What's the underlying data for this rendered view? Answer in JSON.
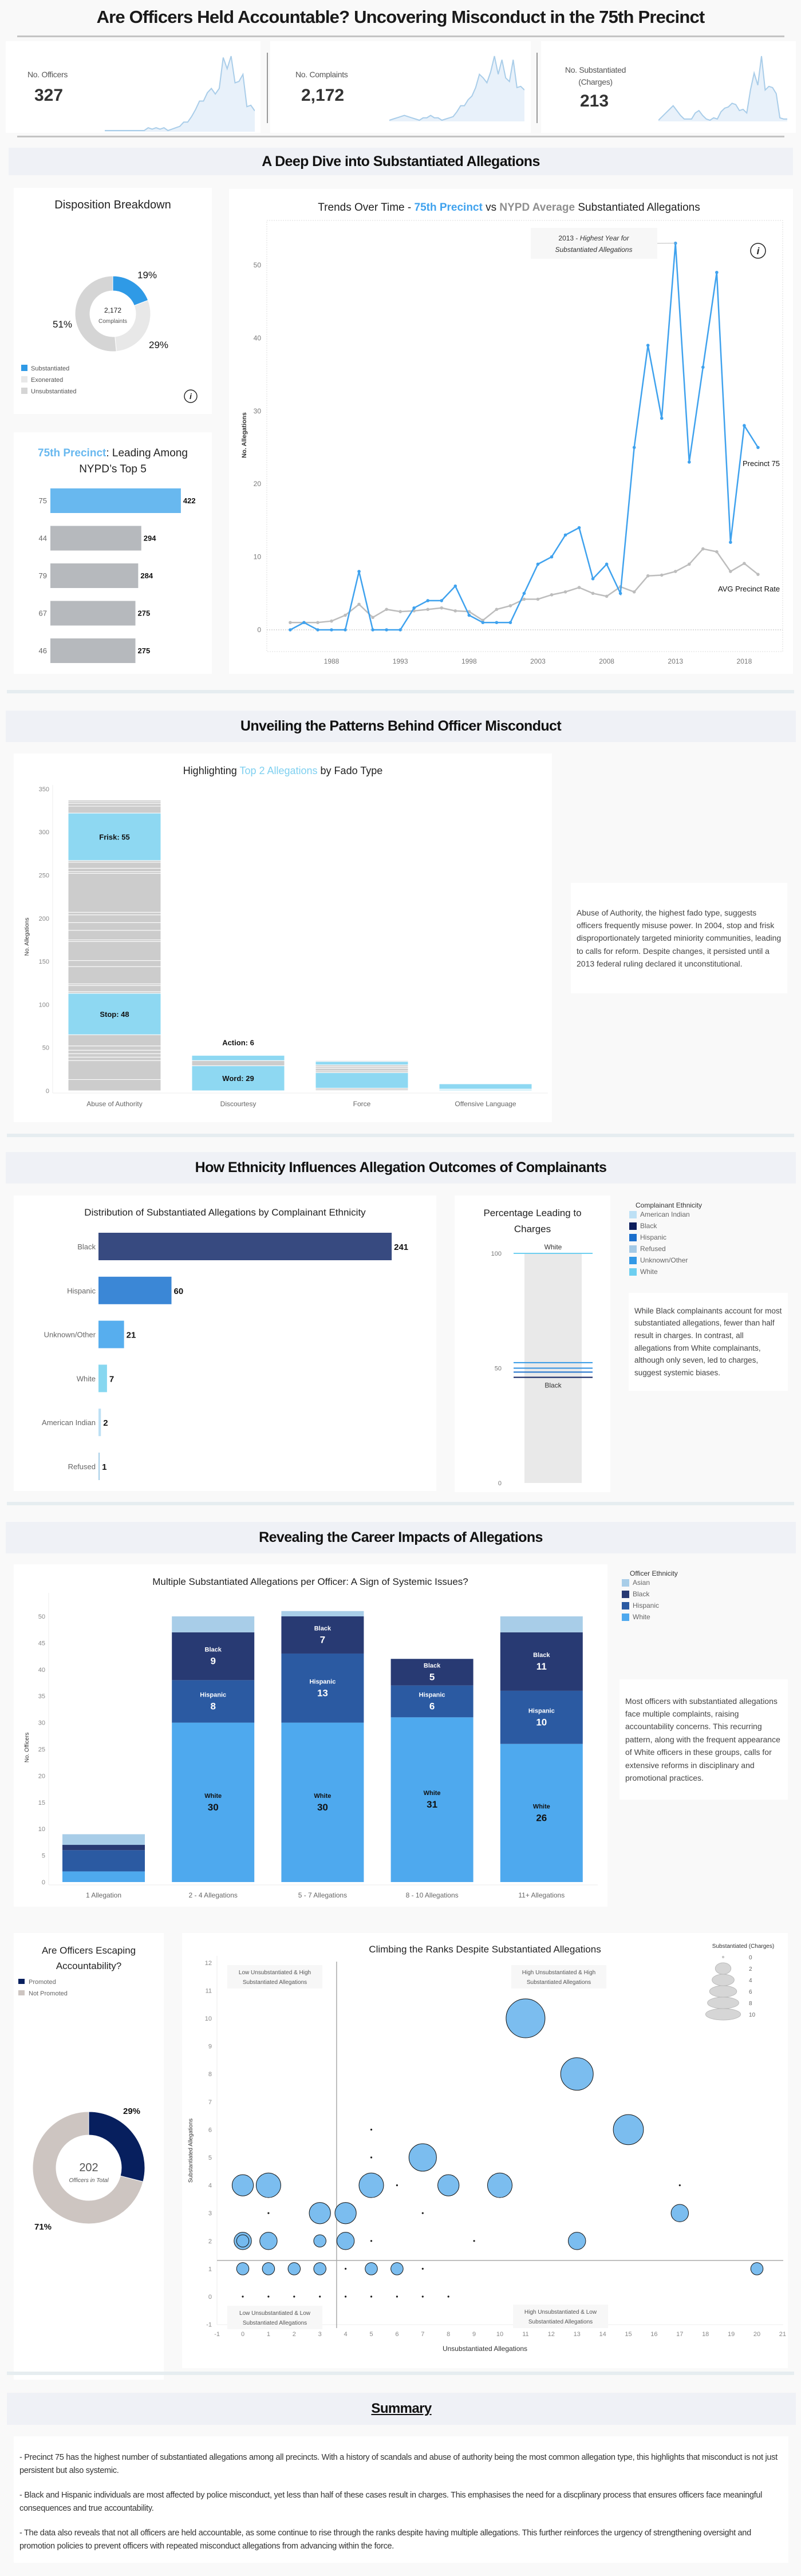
{
  "header": {
    "title": "Are Officers Held Accountable? Uncovering Misconduct in the 75th Precinct"
  },
  "kpis": [
    {
      "label": "No. Officers",
      "value": "327",
      "trend": [
        0,
        0,
        0,
        0,
        0,
        0,
        0,
        0,
        0,
        0,
        0,
        2,
        1,
        2,
        1,
        2,
        0,
        1,
        2,
        3,
        6,
        6,
        10,
        15,
        21,
        21,
        27,
        30,
        26,
        30,
        52,
        44,
        53,
        34,
        35,
        40,
        17,
        18,
        14
      ]
    },
    {
      "label": "No. Complaints",
      "value": "2,172",
      "trend": [
        0,
        1,
        2,
        3,
        4,
        3,
        2,
        1,
        0,
        2,
        2,
        4,
        2,
        2,
        0,
        1,
        2,
        3,
        7,
        12,
        12,
        17,
        20,
        27,
        38,
        35,
        31,
        40,
        53,
        38,
        50,
        35,
        32,
        50,
        27,
        28,
        25
      ]
    },
    {
      "label_line1": "No. Substantiated",
      "label_line2": "(Charges)",
      "value": "213",
      "trend": [
        0,
        3,
        6,
        9,
        12,
        8,
        4,
        1,
        1,
        1,
        6,
        8,
        4,
        1,
        0,
        2,
        1,
        7,
        10,
        11,
        14,
        13,
        8,
        9,
        6,
        25,
        39,
        29,
        53,
        25,
        28,
        27,
        22,
        2,
        1,
        1
      ]
    }
  ],
  "sections": {
    "deep_dive": "A Deep Dive into Substantiated Allegations",
    "patterns": "Unveiling the Patterns Behind Officer Misconduct",
    "ethnicity": "How Ethnicity Influences Allegation Outcomes of Complainants",
    "career": "Revealing the Career Impacts of Allegations",
    "summary": "Summary"
  },
  "notes": {
    "fado": "Abuse of Authority, the highest fado type, suggests officers frequently misuse power. In 2004, stop and frisk disproportionately targeted miniority communities, leading to calls for reform. Despite changes, it persisted until a 2013 federal ruling declared it unconstitutional.",
    "ethnicity": "While Black complainants account for most substantiated allegations, fewer than half result in charges. In contrast, all allegations from White complainants, although only seven, led to charges, suggest systemic biases.",
    "career": "Most officers with substantiated allegations face multiple complaints, raising accountability concerns. This recurring pattern, along with the frequent appearance of White officers in these groups, calls for extensive reforms in disciplinary and promotional practices."
  },
  "summary": [
    "- Precinct 75 has the highest number of substantiated allegations among all precincts. With a history of scandals and abuse of authority being the most common allegation type, this highlights that misconduct is not just persistent but also systemic.",
    "- Black and Hispanic individuals are most affected by police misconduct, yet less than half of these cases result in charges. This emphasises the need for a discplinary process that ensures officers face meaningful consequences and true accountability.",
    "- The data also reveals that not all officers are held accountable, as some continue to rise through the ranks despite having multiple allegations. This further reinforces the urgency of strengthening oversight and promotion policies to prevent officers with repeated misconduct allegations from advancing within the force."
  ],
  "icons": {
    "info": "info-circle-icon"
  },
  "chart_data": [
    {
      "type": "pie",
      "title": "Disposition Breakdown",
      "center_value": "2,172",
      "center_label": "Complaints",
      "slices": [
        {
          "label": "Substantiated",
          "value": 19,
          "display": "19%",
          "color": "#2f9ae6"
        },
        {
          "label": "Exonerated",
          "value": 29,
          "display": "29%",
          "color": "#e8e8e8"
        },
        {
          "label": "Unsubstantiated",
          "value": 51,
          "display": "51%",
          "color": "#d5d5d5"
        }
      ],
      "legend_placement": "bottom-left"
    },
    {
      "type": "bar",
      "orientation": "horizontal",
      "title_highlight": "75th Precinct",
      "title_rest": ": Leading Among",
      "title_line2": "NYPD’s  Top 5",
      "categories": [
        "75",
        "44",
        "79",
        "67",
        "46"
      ],
      "values": [
        422,
        294,
        284,
        275,
        275
      ],
      "highlight_color": "#68b8ef",
      "base_color": "#b6b9bd"
    },
    {
      "type": "line",
      "title_parts": [
        "Trends Over Time - ",
        "75th Precinct",
        " vs ",
        "NYPD Average",
        " Substantiated Allegations"
      ],
      "ylabel": "No. Allegations",
      "xlabel": "",
      "ylim": [
        -3,
        56
      ],
      "xlim": [
        1983.3,
        2020.8
      ],
      "yticks": [
        0,
        10,
        20,
        30,
        40,
        50
      ],
      "xticks": [
        1988,
        1993,
        1998,
        2003,
        2008,
        2013,
        2018
      ],
      "grid": false,
      "x": [
        1985,
        1986,
        1987,
        1988,
        1989,
        1990,
        1991,
        1992,
        1993,
        1994,
        1995,
        1996,
        1997,
        1998,
        1999,
        2000,
        2001,
        2002,
        2003,
        2004,
        2005,
        2006,
        2007,
        2008,
        2009,
        2010,
        2011,
        2012,
        2013,
        2014,
        2015,
        2016,
        2017,
        2018,
        2019
      ],
      "series": [
        {
          "name": "Precinct 75",
          "color": "#3fa2ee",
          "values": [
            0,
            1,
            0,
            0,
            0,
            8,
            0,
            0,
            0,
            3,
            4,
            4,
            6,
            2,
            1,
            1,
            1,
            5,
            9,
            10,
            13,
            14,
            7,
            9,
            5,
            25,
            39,
            29,
            53,
            23,
            36,
            49,
            12,
            28,
            25
          ]
        },
        {
          "name": "AVG Precinct Rate",
          "color": "#bdbdbd",
          "values": [
            1,
            1,
            1,
            1.2,
            2,
            3.5,
            1.7,
            2.8,
            2.5,
            2.6,
            2.8,
            3.0,
            2.6,
            2.5,
            1.3,
            2.8,
            3.3,
            4.2,
            4.2,
            4.8,
            5.2,
            5.8,
            5.0,
            4.6,
            5.9,
            5.2,
            7.4,
            7.5,
            8.0,
            9.0,
            11.1,
            10.7,
            8.0,
            9.1,
            7.6
          ]
        }
      ],
      "annotation": {
        "year": "2013 - ",
        "text": "Highest Year for",
        "text2": "Substantiated Allegations",
        "x": 2013,
        "y": 53
      }
    },
    {
      "type": "bar",
      "stacked": true,
      "title_parts": [
        "Highlighting ",
        "Top 2 Allegations",
        " by Fado Type"
      ],
      "ylabel": "No. Allegations",
      "ylim": [
        0,
        350
      ],
      "yticks": [
        0,
        50,
        100,
        150,
        200,
        250,
        300,
        350
      ],
      "categories": [
        "Abuse of Authority",
        "Discourtesy",
        "Force",
        "Offensive Language"
      ],
      "highlight_color": "#8ed8f2",
      "base_color": "#cccccc",
      "segments": [
        [
          {
            "v": 13
          },
          {
            "v": 22
          },
          {
            "v": 4
          },
          {
            "v": 4
          },
          {
            "v": 4
          },
          {
            "v": 5
          },
          {
            "v": 13
          },
          {
            "v": 48,
            "h": true,
            "label": "Stop: 48"
          },
          {
            "v": 2
          },
          {
            "v": 7
          },
          {
            "v": 2
          },
          {
            "v": 20
          },
          {
            "v": 7
          },
          {
            "v": 22
          },
          {
            "v": 2
          },
          {
            "v": 11
          },
          {
            "v": 9
          },
          {
            "v": 9
          },
          {
            "v": 3
          },
          {
            "v": 45
          },
          {
            "v": 2
          },
          {
            "v": 4
          },
          {
            "v": 7
          },
          {
            "v": 2
          },
          {
            "v": 55,
            "h": true,
            "label": "Frisk: 55"
          },
          {
            "v": 8
          },
          {
            "v": 3
          },
          {
            "v": 2
          },
          {
            "v": 2
          }
        ],
        [
          {
            "v": 29,
            "h": true,
            "label": "Word: 29"
          },
          {
            "v": 6
          },
          {
            "v": 6,
            "h": true,
            "label": "Action: 6",
            "label_above": true
          }
        ],
        [
          {
            "v": 1
          },
          {
            "v": 2
          },
          {
            "v": 18,
            "h": true
          },
          {
            "v": 2
          },
          {
            "v": 3
          },
          {
            "v": 2
          },
          {
            "v": 2
          },
          {
            "v": 4,
            "h": true
          },
          {
            "v": 1
          }
        ],
        [
          {
            "v": 1,
            "h": true
          },
          {
            "v": 1,
            "h": true
          },
          {
            "v": 6,
            "h": true
          }
        ]
      ]
    },
    {
      "type": "bar",
      "orientation": "horizontal",
      "title": "Distribution of Substantiated Allegations by Complainant Ethnicity",
      "categories": [
        "Black",
        "Hispanic",
        "Unknown/Other",
        "White",
        "American Indian",
        "Refused"
      ],
      "values": [
        241,
        60,
        21,
        7,
        2,
        1
      ],
      "colors": [
        "#374a80",
        "#3b87d6",
        "#57aeee",
        "#87d7f0",
        "#bde0f5",
        "#a8cfe8"
      ]
    },
    {
      "type": "scatter",
      "subtype": "strip",
      "title": "Percentage Leading to Charges",
      "ylim": [
        0,
        100
      ],
      "yticks": [
        0,
        50,
        100
      ],
      "points": [
        {
          "ethnicity": "White",
          "value": 100,
          "color": "#6dcff0",
          "label": "White"
        },
        {
          "ethnicity": "Unknown/Other",
          "value": 52.4,
          "color": "#3399e6"
        },
        {
          "ethnicity": "American Indian",
          "value": 50,
          "color": "#2e8fe0"
        },
        {
          "ethnicity": "Hispanic",
          "value": 48.3,
          "color": "#1c6fcc"
        },
        {
          "ethnicity": "Black",
          "value": 46,
          "color": "#0b1d5c",
          "label": "Black"
        }
      ],
      "legend": {
        "title": "Complainant Ethnicity",
        "items": [
          {
            "label": "American Indian",
            "color": "#bde0f5"
          },
          {
            "label": "Black",
            "color": "#0b1d5c"
          },
          {
            "label": "Hispanic",
            "color": "#1c6fcc"
          },
          {
            "label": "Refused",
            "color": "#a3c9e6"
          },
          {
            "label": "Unknown/Other",
            "color": "#3399e6"
          },
          {
            "label": "White",
            "color": "#6dcff0"
          }
        ]
      }
    },
    {
      "type": "bar",
      "stacked": true,
      "title": "Multiple Substantiated Allegations per Officer: A Sign of Systemic Issues?",
      "ylabel": "No. Officers",
      "ylim": [
        0,
        50
      ],
      "yticks": [
        0,
        5,
        10,
        15,
        20,
        25,
        30,
        35,
        40,
        45,
        50
      ],
      "categories": [
        "1 Allegation",
        "2 - 4 Allegations",
        "5 - 7 Allegations",
        "8 - 10 Allegations",
        "11+ Allegations"
      ],
      "series": [
        {
          "name": "White",
          "color": "#4ea9ee",
          "values": [
            2,
            30,
            30,
            31,
            26
          ]
        },
        {
          "name": "Hispanic",
          "color": "#2b5aa2",
          "values": [
            4,
            8,
            13,
            6,
            10
          ]
        },
        {
          "name": "Black",
          "color": "#283a73",
          "values": [
            1,
            9,
            7,
            5,
            11
          ]
        },
        {
          "name": "Asian",
          "color": "#a8cde8",
          "values": [
            2,
            3,
            1,
            0,
            3
          ]
        }
      ],
      "legend": {
        "title": "Officer Ethnicity",
        "items": [
          {
            "label": "Asian",
            "color": "#a8cde8"
          },
          {
            "label": "Black",
            "color": "#283a73"
          },
          {
            "label": "Hispanic",
            "color": "#2b5aa2"
          },
          {
            "label": "White",
            "color": "#4ea9ee"
          }
        ]
      }
    },
    {
      "type": "pie",
      "title_line1": "Are Officers Escaping",
      "title_line2": "Accountability?",
      "center_value": "202",
      "center_label": "Officers in Total",
      "slices": [
        {
          "label": "Promoted",
          "value": 29,
          "display": "29%",
          "color": "#071f5e"
        },
        {
          "label": "Not Promoted",
          "value": 71,
          "display": "71%",
          "color": "#cdc5c1"
        }
      ],
      "legend_placement": "top-left"
    },
    {
      "type": "scatter",
      "subtype": "bubble",
      "title": "Climbing the Ranks Despite Substantiated Allegations",
      "xlabel": "Unsubstantiated Allegations",
      "ylabel": "Substantiated Allegations",
      "xlim": [
        -1,
        21
      ],
      "ylim": [
        -1,
        12
      ],
      "xticks": [
        -1,
        0,
        1,
        2,
        3,
        4,
        5,
        6,
        7,
        8,
        9,
        10,
        11,
        12,
        13,
        14,
        15,
        16,
        17,
        18,
        19,
        20,
        21
      ],
      "yticks": [
        -1,
        0,
        1,
        2,
        3,
        4,
        5,
        6,
        7,
        8,
        9,
        10,
        11,
        12
      ],
      "reference_lines": {
        "x": 3.65,
        "y": 1.3
      },
      "quadrants": {
        "top_left": [
          "Low Unsubstantiated & High",
          "Substantiated Allegations"
        ],
        "top_right": [
          "High Unsubstantiated & High",
          "Substantiated Allegations"
        ],
        "bottom_left": [
          "Low Unsubstantiated & Low",
          "Substantiated Allegations"
        ],
        "bottom_right": [
          "High Unsubstantiated & Low",
          "Substantiated Allegations"
        ]
      },
      "color": "#74b9ee",
      "size_legend": {
        "title": "Substantiated (Charges)",
        "values": [
          "0",
          "2",
          "4",
          "6",
          "8",
          "10"
        ]
      },
      "points": [
        [
          11,
          10,
          10
        ],
        [
          13,
          8,
          7
        ],
        [
          15,
          6,
          6
        ],
        [
          7,
          5,
          5
        ],
        [
          0,
          4,
          3
        ],
        [
          1,
          4,
          4
        ],
        [
          5,
          4,
          4
        ],
        [
          8,
          4,
          3
        ],
        [
          10,
          4,
          4
        ],
        [
          3,
          3,
          3
        ],
        [
          4,
          3,
          3
        ],
        [
          17,
          3,
          2
        ],
        [
          0,
          2,
          2
        ],
        [
          0,
          2,
          1
        ],
        [
          1,
          2,
          2
        ],
        [
          3,
          2,
          1
        ],
        [
          4,
          2,
          2
        ],
        [
          13,
          2,
          2
        ],
        [
          0,
          1,
          1
        ],
        [
          1,
          1,
          1
        ],
        [
          2,
          1,
          1
        ],
        [
          3,
          1,
          1
        ],
        [
          5,
          1,
          1
        ],
        [
          6,
          1,
          1
        ],
        [
          20,
          1,
          1
        ],
        [
          1,
          3,
          0
        ],
        [
          5,
          6,
          0
        ],
        [
          5,
          5,
          0
        ],
        [
          6,
          4,
          0
        ],
        [
          7,
          3,
          0
        ],
        [
          5,
          2,
          0
        ],
        [
          9,
          2,
          0
        ],
        [
          17,
          4,
          0
        ],
        [
          4,
          1,
          0
        ],
        [
          7,
          1,
          0
        ],
        [
          0,
          0,
          0
        ],
        [
          1,
          0,
          0
        ],
        [
          2,
          0,
          0
        ],
        [
          3,
          0,
          0
        ],
        [
          4,
          0,
          0
        ],
        [
          5,
          0,
          0
        ],
        [
          6,
          0,
          0
        ],
        [
          7,
          0,
          0
        ],
        [
          8,
          0,
          0
        ]
      ]
    }
  ]
}
